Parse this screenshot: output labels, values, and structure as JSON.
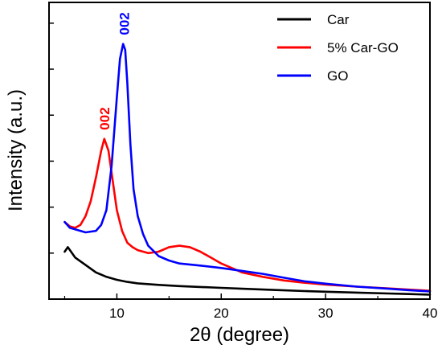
{
  "chart_data": {
    "type": "line",
    "xlabel": "2θ (degree)",
    "ylabel": "Intensity (a.u.)",
    "xlim": [
      3.5,
      40
    ],
    "ylim": [
      0,
      100
    ],
    "x_ticks": [
      10,
      20,
      30,
      40
    ],
    "x_tick_labels": [
      "10",
      "20",
      "30",
      "40"
    ],
    "y_tick_labels_shown": false,
    "grid": false,
    "legend_position": "top-right",
    "series": [
      {
        "name": "Car",
        "color": "#000000",
        "x": [
          5,
          5.3,
          6,
          7,
          8,
          9,
          10,
          11,
          12,
          14,
          16,
          18,
          20,
          22,
          25,
          28,
          30,
          33,
          36,
          38,
          40
        ],
        "y": [
          16,
          17.5,
          14,
          11.5,
          9,
          7.5,
          6.5,
          5.8,
          5.3,
          4.8,
          4.4,
          4.1,
          3.8,
          3.5,
          3.1,
          2.7,
          2.5,
          2.2,
          1.9,
          1.7,
          1.5
        ]
      },
      {
        "name": "5% Car-GO",
        "color": "#ff0000",
        "x": [
          5,
          5.5,
          6,
          6.5,
          7,
          7.5,
          8,
          8.5,
          8.8,
          9.2,
          9.6,
          10,
          10.5,
          11,
          11.5,
          12,
          13,
          14,
          15,
          16,
          17,
          18,
          19,
          20,
          22,
          24,
          26,
          28,
          30,
          33,
          36,
          38,
          40
        ],
        "y": [
          26,
          24.5,
          24,
          25,
          28,
          33,
          41,
          50,
          54,
          50,
          40,
          30,
          23,
          19,
          17.5,
          16.5,
          15.5,
          16,
          17.5,
          18,
          17.5,
          16,
          14,
          12,
          9,
          7.5,
          6.3,
          5.5,
          4.9,
          4.2,
          3.6,
          3.2,
          2.8
        ]
      },
      {
        "name": "GO",
        "color": "#0000ff",
        "x": [
          5,
          5.5,
          6,
          7,
          8,
          8.5,
          9,
          9.5,
          10,
          10.3,
          10.6,
          10.8,
          11,
          11.3,
          11.6,
          12,
          12.5,
          13,
          14,
          15,
          16,
          18,
          20,
          22,
          24,
          26,
          28,
          30,
          33,
          36,
          38,
          40
        ],
        "y": [
          26,
          24,
          23.5,
          22.5,
          23,
          25,
          30,
          45,
          68,
          81,
          86,
          84,
          73,
          52,
          37,
          28,
          22,
          18,
          14.5,
          13,
          12,
          11.3,
          10.5,
          9.5,
          8.5,
          7.2,
          6,
          5.2,
          4.2,
          3.5,
          3,
          2.6
        ]
      }
    ],
    "annotations": [
      {
        "text": "002",
        "x": 8.8,
        "y": 57,
        "color": "#ff0000",
        "rotation": -90
      },
      {
        "text": "002",
        "x": 10.7,
        "y": 89,
        "color": "#0000ff",
        "rotation": -90
      }
    ]
  }
}
